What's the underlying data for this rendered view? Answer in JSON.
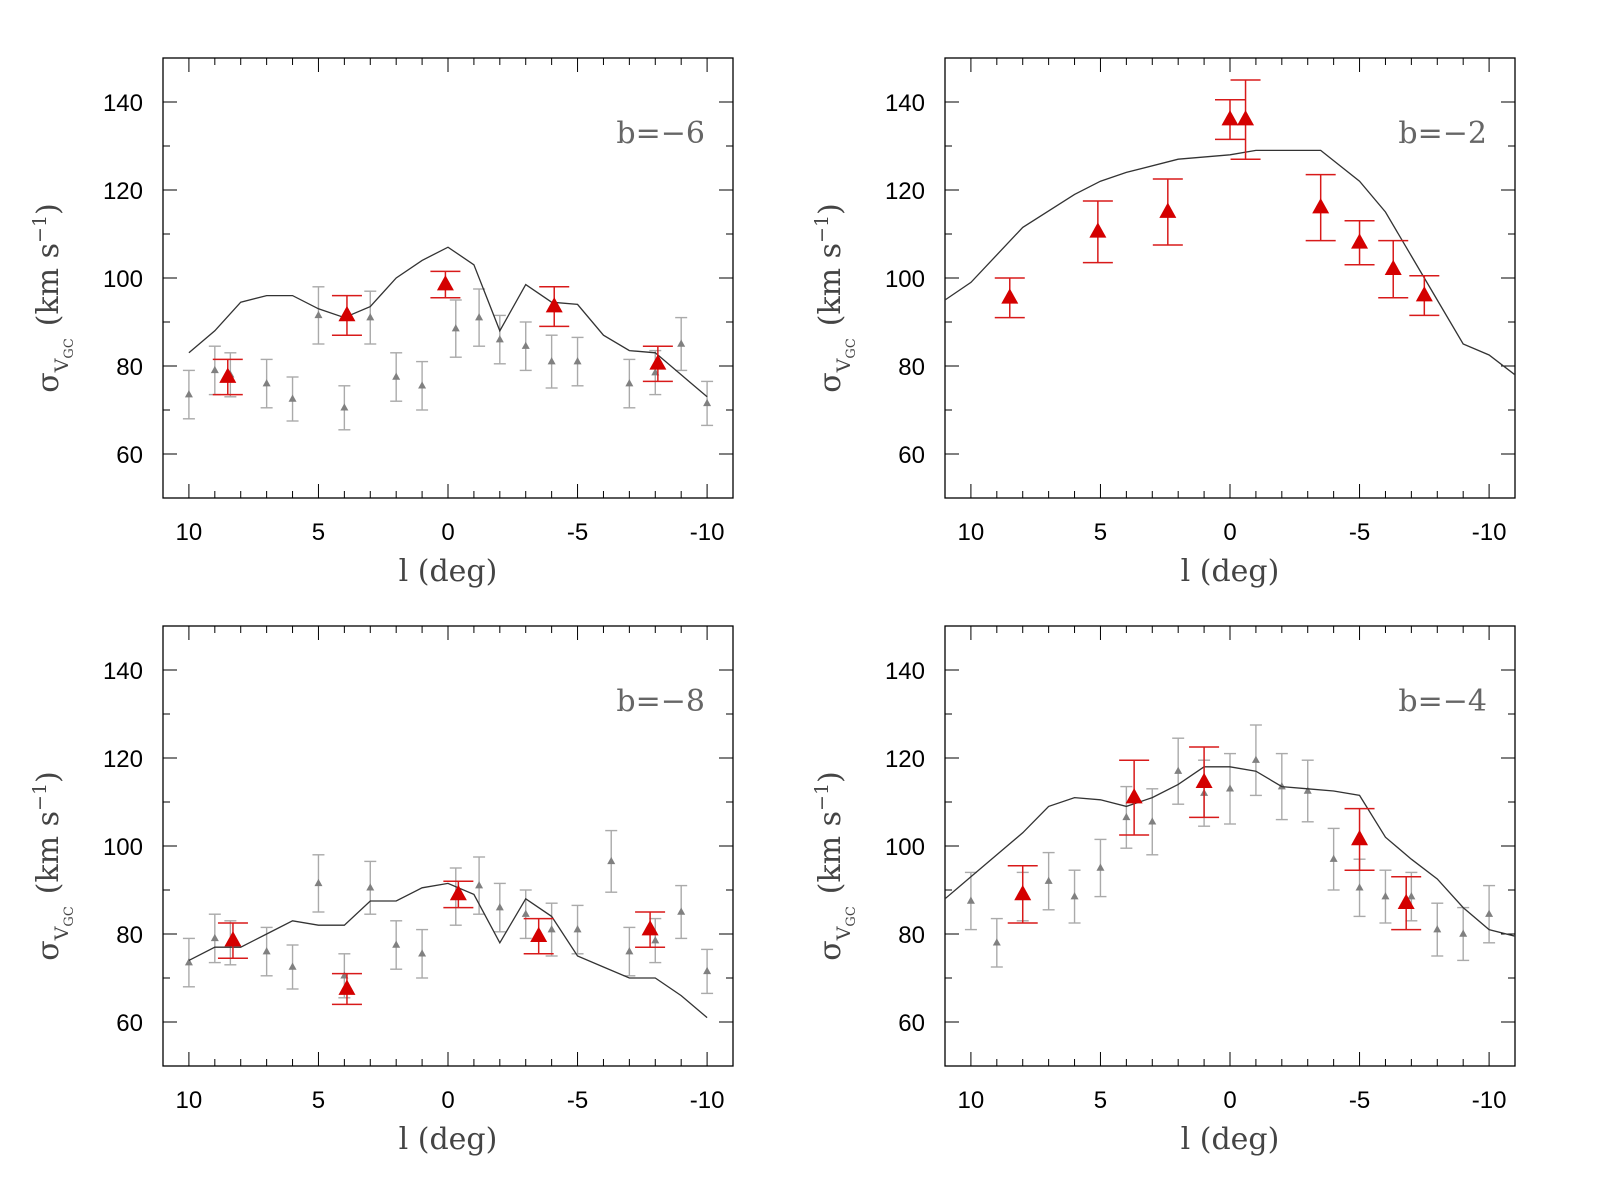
{
  "chart_data": [
    {
      "type": "scatter",
      "panel_label": "b=−6",
      "xlabel": "l (deg)",
      "ylabel_symbol": "σ",
      "ylabel_sub": "V",
      "ylabel_subsub": "GC",
      "ylabel_units": "(km s",
      "ylabel_exp": "−1",
      "ylabel_close": ")",
      "xlim": [
        11,
        -11
      ],
      "ylim": [
        50,
        150
      ],
      "xticks": [
        10,
        5,
        0,
        -5,
        -10
      ],
      "xtick_labels": [
        "10",
        "5",
        "0",
        "-5",
        "-10"
      ],
      "yticks": [
        60,
        80,
        100,
        120,
        140
      ],
      "ytick_labels": [
        "60",
        "80",
        "100",
        "120",
        "140"
      ],
      "model_line": {
        "x": [
          10,
          9,
          8,
          7,
          6,
          5,
          4,
          3,
          2,
          1,
          0,
          -1,
          -2,
          -3,
          -4,
          -5,
          -6,
          -7,
          -8,
          -9,
          -10
        ],
        "y": [
          83,
          88,
          94.5,
          96,
          96,
          93,
          91,
          93.5,
          100,
          104,
          107,
          103,
          88,
          98.5,
          94.5,
          94,
          87,
          83.5,
          83,
          78,
          73
        ]
      },
      "gray_points": {
        "x": [
          10,
          9,
          8.4,
          7,
          6,
          5,
          4,
          3,
          2,
          1,
          -0.3,
          -1.2,
          -2,
          -3,
          -4,
          -5,
          -7,
          -8,
          -9,
          -10
        ],
        "y": [
          73.5,
          79,
          78,
          76,
          72.5,
          91.5,
          70.5,
          91,
          77.5,
          75.5,
          88.5,
          91,
          86,
          84.5,
          81,
          81,
          76,
          78.5,
          85,
          71.5
        ],
        "err": [
          5.5,
          5.5,
          5,
          5.5,
          5,
          6.5,
          5,
          6,
          5.5,
          5.5,
          6.5,
          6.5,
          5.5,
          5.5,
          6,
          5.5,
          5.5,
          5,
          6,
          5
        ]
      },
      "red_points": {
        "x": [
          8.5,
          3.9,
          0.1,
          -4.1,
          -8.1
        ],
        "y": [
          77.5,
          91.5,
          98.5,
          93.5,
          80.5
        ],
        "err": [
          4,
          4.5,
          3,
          4.5,
          4
        ]
      }
    },
    {
      "type": "scatter",
      "panel_label": "b=−2",
      "xlabel": "l (deg)",
      "ylabel_symbol": "σ",
      "ylabel_sub": "V",
      "ylabel_subsub": "GC",
      "ylabel_units": "(km s",
      "ylabel_exp": "−1",
      "ylabel_close": ")",
      "xlim": [
        11,
        -11
      ],
      "ylim": [
        50,
        150
      ],
      "xticks": [
        10,
        5,
        0,
        -5,
        -10
      ],
      "xtick_labels": [
        "10",
        "5",
        "0",
        "-5",
        "-10"
      ],
      "yticks": [
        60,
        80,
        100,
        120,
        140
      ],
      "ytick_labels": [
        "60",
        "80",
        "100",
        "120",
        "140"
      ],
      "model_line": {
        "x": [
          11,
          10,
          8,
          6,
          5,
          4,
          2,
          0,
          -1,
          -2,
          -3.5,
          -5,
          -6,
          -7,
          -8,
          -9,
          -10,
          -11
        ],
        "y": [
          95,
          99,
          111.5,
          119,
          122,
          124,
          127,
          128,
          129,
          129,
          129,
          122,
          115,
          105,
          95,
          85,
          82.5,
          78
        ]
      },
      "gray_points": {
        "x": [],
        "y": [],
        "err": []
      },
      "red_points": {
        "x": [
          8.5,
          5.1,
          2.4,
          0,
          -0.6,
          -3.5,
          -5,
          -6.3,
          -7.5
        ],
        "y": [
          95.5,
          110.5,
          115,
          136,
          136,
          116,
          108,
          102,
          96
        ],
        "err": [
          4.5,
          7,
          7.5,
          4.5,
          9,
          7.5,
          5,
          6.5,
          4.5
        ]
      }
    },
    {
      "type": "scatter",
      "panel_label": "b=−8",
      "xlabel": "l (deg)",
      "ylabel_symbol": "σ",
      "ylabel_sub": "V",
      "ylabel_subsub": "GC",
      "ylabel_units": "(km s",
      "ylabel_exp": "−1",
      "ylabel_close": ")",
      "xlim": [
        11,
        -11
      ],
      "ylim": [
        50,
        150
      ],
      "xticks": [
        10,
        5,
        0,
        -5,
        -10
      ],
      "xtick_labels": [
        "10",
        "5",
        "0",
        "-5",
        "-10"
      ],
      "yticks": [
        60,
        80,
        100,
        120,
        140
      ],
      "ytick_labels": [
        "60",
        "80",
        "100",
        "120",
        "140"
      ],
      "model_line": {
        "x": [
          10,
          9,
          8,
          7,
          6,
          5,
          4,
          3,
          2,
          1,
          0,
          -1,
          -2,
          -3,
          -4,
          -5,
          -6,
          -7,
          -8,
          -9,
          -10
        ],
        "y": [
          74,
          77,
          77,
          80,
          83,
          82,
          82,
          87.5,
          87.5,
          90.5,
          91.5,
          89,
          78,
          88,
          84,
          75,
          72.5,
          70,
          70,
          66,
          61
        ]
      },
      "gray_points": {
        "x": [
          10,
          9,
          8.4,
          7,
          6,
          5,
          4,
          3,
          2,
          1,
          -0.3,
          -1.2,
          -2,
          -3,
          -4,
          -5,
          -6.3,
          -7,
          -8,
          -9,
          -10
        ],
        "y": [
          73.5,
          79,
          78,
          76,
          72.5,
          91.5,
          70.5,
          90.5,
          77.5,
          75.5,
          88.5,
          91,
          86,
          84.5,
          81,
          81,
          96.5,
          76,
          78.5,
          85,
          71.5
        ],
        "err": [
          5.5,
          5.5,
          5,
          5.5,
          5,
          6.5,
          5,
          6,
          5.5,
          5.5,
          6.5,
          6.5,
          5.5,
          5.5,
          6,
          5.5,
          7,
          5.5,
          5,
          6,
          5
        ]
      },
      "red_points": {
        "x": [
          8.3,
          3.9,
          -0.4,
          -3.5,
          -7.8
        ],
        "y": [
          78.5,
          67.5,
          89,
          79.5,
          81
        ],
        "err": [
          4,
          3.5,
          3,
          4,
          4
        ]
      }
    },
    {
      "type": "scatter",
      "panel_label": "b=−4",
      "xlabel": "l (deg)",
      "ylabel_symbol": "σ",
      "ylabel_sub": "V",
      "ylabel_subsub": "GC",
      "ylabel_units": "(km s",
      "ylabel_exp": "−1",
      "ylabel_close": ")",
      "xlim": [
        11,
        -11
      ],
      "ylim": [
        50,
        150
      ],
      "xticks": [
        10,
        5,
        0,
        -5,
        -10
      ],
      "xtick_labels": [
        "10",
        "5",
        "0",
        "-5",
        "-10"
      ],
      "yticks": [
        60,
        80,
        100,
        120,
        140
      ],
      "ytick_labels": [
        "60",
        "80",
        "100",
        "120",
        "140"
      ],
      "model_line": {
        "x": [
          11,
          10,
          9,
          8,
          7,
          6,
          5,
          4,
          3,
          2,
          1,
          0,
          -1,
          -2,
          -3,
          -4,
          -5,
          -6,
          -7,
          -8,
          -9,
          -10,
          -11
        ],
        "y": [
          88,
          93,
          98,
          103,
          109,
          111,
          110.5,
          109,
          111,
          114,
          118,
          118,
          117,
          113.5,
          113,
          112.5,
          111.5,
          102,
          97,
          92.5,
          86,
          81,
          79.5
        ]
      },
      "gray_points": {
        "x": [
          10,
          9,
          8,
          7,
          6,
          5,
          4,
          3,
          2,
          1,
          0,
          -1,
          -2,
          -3,
          -4,
          -5,
          -6,
          -7,
          -8,
          -9,
          -10
        ],
        "y": [
          87.5,
          78,
          88.5,
          92,
          88.5,
          95,
          106.5,
          105.5,
          117,
          112,
          113,
          119.5,
          113.5,
          112.5,
          97,
          90.5,
          88.5,
          88.5,
          81,
          80,
          84.5
        ],
        "err": [
          6.5,
          5.5,
          5.5,
          6.5,
          6,
          6.5,
          7,
          7.5,
          7.5,
          7.5,
          8,
          8,
          7.5,
          7,
          7,
          6.5,
          6,
          5.5,
          6,
          6,
          6.5
        ]
      },
      "red_points": {
        "x": [
          8,
          3.7,
          1,
          -5,
          -6.8
        ],
        "y": [
          89,
          111,
          114.5,
          101.5,
          87
        ],
        "err": [
          6.5,
          8.5,
          8,
          7,
          6
        ]
      }
    }
  ]
}
